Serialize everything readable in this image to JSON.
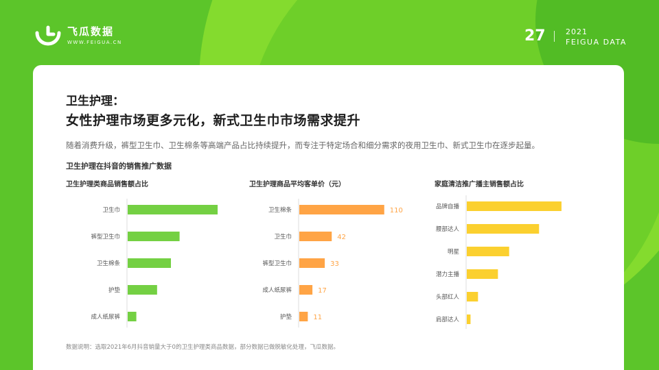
{
  "brand": {
    "name": "飞瓜数据",
    "url": "WWW.FEIGUA.CN",
    "year": "2021",
    "name_en": "FEIGUA DATA"
  },
  "page_number": "27",
  "colors": {
    "green": "#74d043",
    "orange": "#ffa445",
    "yellow": "#fbd02f",
    "bg": "#5cc52a"
  },
  "title_line1": "卫生护理：",
  "title_line2": "女性护理市场更多元化，新式卫生巾市场需求提升",
  "description": "随着消费升级，裤型卫生巾、卫生棉条等高端产品占比持续提升，而专注于特定场合和细分需求的夜用卫生巾、新式卫生巾在逐步起量。",
  "section_title": "卫生护理在抖音的销售推广数据",
  "footnote": "数据说明：选取2021年6月抖音销量大于0的卫生护理类商品数据，部分数据已做脱敏化处理，飞瓜数据。",
  "chart_data": [
    {
      "type": "bar",
      "orientation": "horizontal",
      "title": "卫生护理类商品销售额占比",
      "categories": [
        "卫生巾",
        "裤型卫生巾",
        "卫生棉条",
        "护垫",
        "成人纸尿裤"
      ],
      "values": [
        52,
        30,
        25,
        17,
        5
      ],
      "show_values": false,
      "color": "#74d043"
    },
    {
      "type": "bar",
      "orientation": "horizontal",
      "title": "卫生护理商品平均客单价（元）",
      "categories": [
        "卫生棉条",
        "卫生巾",
        "裤型卫生巾",
        "成人纸尿裤",
        "护垫"
      ],
      "values": [
        110,
        42,
        33,
        17,
        11
      ],
      "show_values": true,
      "color": "#ffa445"
    },
    {
      "type": "bar",
      "orientation": "horizontal",
      "title": "家庭清洁推广播主销售额占比",
      "categories": [
        "品牌自播",
        "腰部达人",
        "明星",
        "潜力主播",
        "头部红人",
        "肩部达人"
      ],
      "values": [
        38,
        29,
        17,
        12.5,
        4.5,
        1.5
      ],
      "show_values": false,
      "color": "#fbd02f"
    }
  ]
}
